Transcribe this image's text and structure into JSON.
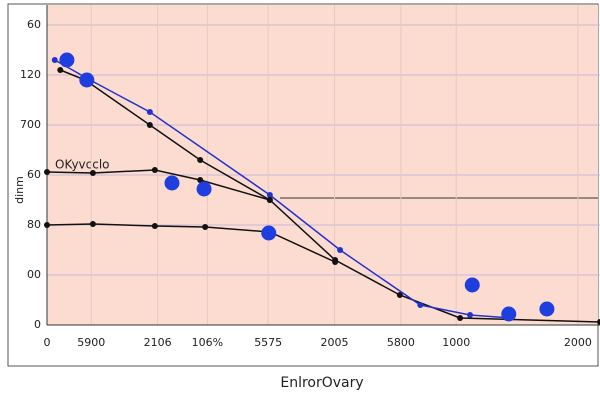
{
  "chart_data": {
    "type": "line",
    "annotation": "OKyvcclo",
    "ylabel": "dinm",
    "xlabel": "EnlrorOvary",
    "xlim": [
      0,
      100
    ],
    "ylim": [
      0,
      6.4
    ],
    "xticks": [
      {
        "value": 0,
        "label": "0"
      },
      {
        "value": 8,
        "label": "5900"
      },
      {
        "value": 20,
        "label": "2106"
      },
      {
        "value": 29,
        "label": "106%"
      },
      {
        "value": 40,
        "label": "5575"
      },
      {
        "value": 52,
        "label": "2005"
      },
      {
        "value": 64,
        "label": "5800"
      },
      {
        "value": 74,
        "label": "1000"
      },
      {
        "value": 96,
        "label": "2000"
      }
    ],
    "yticks": [
      {
        "value": 0,
        "label": "0"
      },
      {
        "value": 1,
        "label": "00"
      },
      {
        "value": 2,
        "label": "80"
      },
      {
        "value": 3,
        "label": "60"
      },
      {
        "value": 4,
        "label": "700"
      },
      {
        "value": 5,
        "label": "120"
      },
      {
        "value": 6,
        "label": "60"
      }
    ],
    "grid": true,
    "series": [
      {
        "color": "#111111",
        "style": "line",
        "x": [
          2.4,
          6.9,
          18.6,
          27.7,
          40.3,
          52.1,
          63.8,
          74.7,
          100
        ],
        "values": [
          5.1,
          4.9,
          4.0,
          3.3,
          2.5,
          1.3,
          0.6,
          0.14,
          0.06
        ]
      },
      {
        "color": "#2233cc",
        "style": "line",
        "x": [
          1.4,
          7.8,
          18.6,
          40.3,
          53,
          67.5,
          76.5,
          83.7
        ],
        "values": [
          5.3,
          4.9,
          4.26,
          2.6,
          1.5,
          0.4,
          0.2,
          0.14
        ]
      },
      {
        "color": "#111111",
        "style": "line",
        "x": [
          0,
          8.3,
          19.5,
          27.7,
          40.3
        ],
        "values": [
          3.06,
          3.04,
          3.1,
          2.9,
          2.5
        ]
      },
      {
        "color": "#111111",
        "style": "line",
        "x": [
          0,
          8.3,
          19.5,
          28.6,
          40.3,
          52.1
        ],
        "values": [
          2.0,
          2.02,
          1.98,
          1.96,
          1.86,
          1.26
        ]
      },
      {
        "color": "#1f3ee0",
        "style": "markers",
        "x": [
          3.6,
          7.2,
          22.6,
          28.4,
          40.1,
          76.9,
          83.5,
          90.4
        ],
        "values": [
          5.3,
          4.9,
          2.84,
          2.72,
          1.84,
          0.8,
          0.22,
          0.32
        ]
      }
    ]
  }
}
